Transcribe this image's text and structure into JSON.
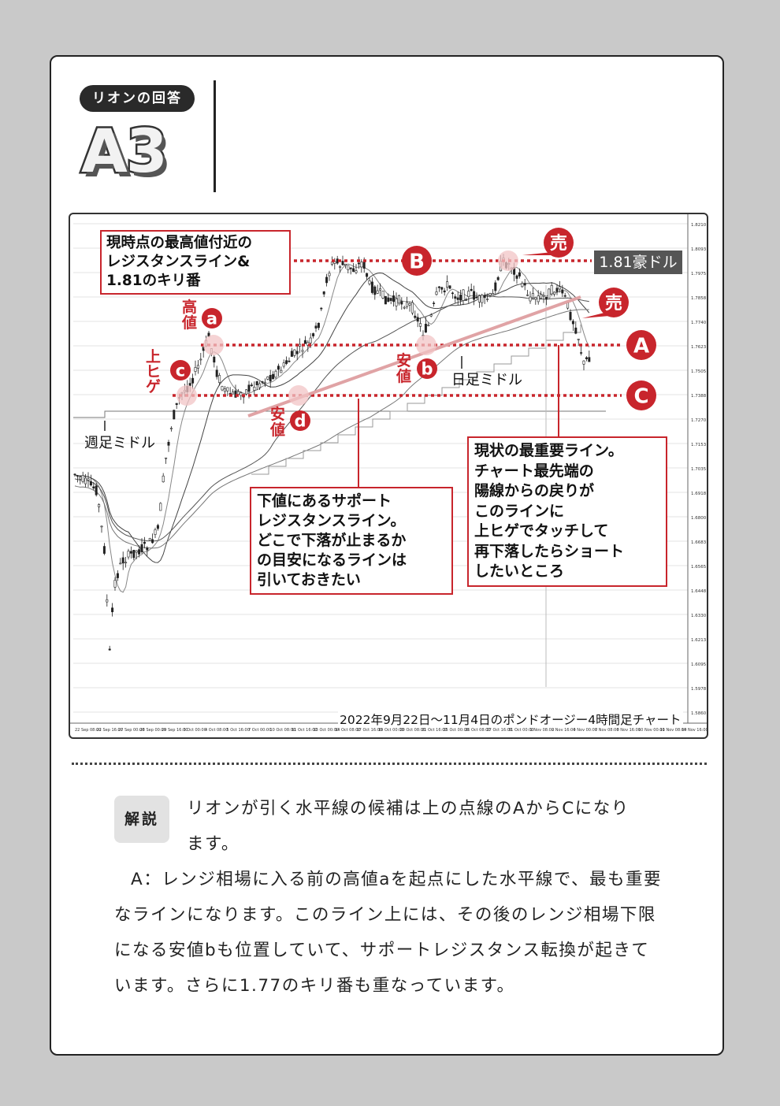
{
  "header": {
    "pill": "リオンの回答",
    "number": "A3"
  },
  "chart": {
    "caption": "2022年9月22日～11月4日のポンドオージー4時間足チャート",
    "box_top_left": "現時点の最高値付近の\nレジスタンスライン&\n1.81のキリ番",
    "price_tag": "1.81豪ドル",
    "box_support": "下値にあるサポート\nレジスタンスライン。\nどこで下落が止まるか\nの目安になるラインは\n引いておきたい",
    "box_important": "現状の最重要ライン。\nチャート最先端の\n陽線からの戻りが\nこのラインに\n上ヒゲでタッチして\n再下落したらショート\nしたいところ",
    "weekly_mid": "週足ミドル",
    "daily_mid": "日足ミドル",
    "sell1": "売",
    "sell2": "売",
    "letter_A": "A",
    "letter_B": "B",
    "letter_C": "C",
    "label_high": "高\n値",
    "label_upper_wick": "上\nヒ\nゲ",
    "label_low_b": "安\n値",
    "label_low_d": "安\n値",
    "circle_a": "a",
    "circle_b": "b",
    "circle_c": "c",
    "circle_d": "d",
    "y_ticks": [
      "1.8210",
      "1.8093",
      "1.7975",
      "1.7858",
      "1.7740",
      "1.7623",
      "1.7505",
      "1.7388",
      "1.7270",
      "1.7153",
      "1.7035",
      "1.6918",
      "1.6800",
      "1.6683",
      "1.6565",
      "1.6448",
      "1.6330",
      "1.6213",
      "1.6095",
      "1.5978",
      "1.5860"
    ],
    "x_ticks": [
      "22 Sep 08:00",
      "22 Sep 16:00",
      "27 Sep 00:00",
      "28 Sep 00:00",
      "29 Sep 16:00",
      "3 Oct 00:00",
      "4 Oct 08:00",
      "5 Oct 16:00",
      "7 Oct 00:00",
      "10 Oct 08:00",
      "11 Oct 16:00",
      "13 Oct 00:00",
      "14 Oct 08:00",
      "17 Oct 16:00",
      "19 Oct 00:00",
      "20 Oct 08:00",
      "21 Oct 16:00",
      "25 Oct 00:00",
      "26 Oct 08:00",
      "27 Oct 16:00",
      "31 Oct 00:00",
      "1 Nov 08:00",
      "2 Nov 16:00",
      "4 Nov 00:00",
      "7 Nov 08:00",
      "8 Nov 16:00",
      "10 Nov 00:00",
      "11 Nov 08:00",
      "14 Nov 16:00"
    ]
  },
  "explanation": {
    "badge": "解説",
    "line1": "リオンが引く水平線の候補は上の点線のAからCになり",
    "line2": "ます。",
    "para2": "A：レンジ相場に入る前の高値aを起点にした水平線で、最も重要なラインになります。このライン上には、その後のレンジ相場下限になる安値bも位置していて、サポートレジスタンス転換が起きています。さらに1.77のキリ番も重なっています。"
  },
  "colors": {
    "red": "#c8252c",
    "pink_trend": "#e0a3a5",
    "dark": "#222222"
  }
}
